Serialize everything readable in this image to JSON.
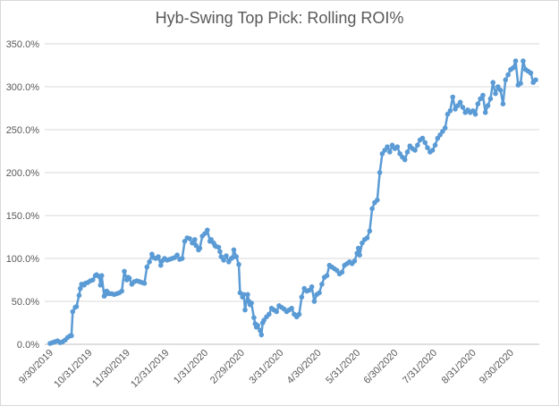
{
  "chart_data": {
    "type": "line",
    "title": "Hyb-Swing Top Pick: Rolling ROI%",
    "xlabel": "",
    "ylabel": "",
    "ylim": [
      0,
      350
    ],
    "y_ticks": [
      "0.0%",
      "50.0%",
      "100.0%",
      "150.0%",
      "200.0%",
      "250.0%",
      "300.0%",
      "350.0%"
    ],
    "x_ticks": [
      "9/30/2019",
      "10/31/2019",
      "11/30/2019",
      "12/31/2019",
      "1/31/2020",
      "2/29/2020",
      "3/31/2020",
      "4/30/2020",
      "5/31/2020",
      "6/30/2020",
      "7/31/2020",
      "8/31/2020",
      "9/30/2020"
    ],
    "x_range": [
      "2019-09-30",
      "2020-10-20"
    ],
    "grid": "horizontal",
    "legend": "none",
    "line_color": "#5b9bd5",
    "series": [
      {
        "x": [
          "2019-09-30",
          "2019-10-02",
          "2019-10-04",
          "2019-10-06",
          "2019-10-08",
          "2019-10-10",
          "2019-10-12",
          "2019-10-14",
          "2019-10-16",
          "2019-10-17",
          "2019-10-18",
          "2019-10-20",
          "2019-10-21",
          "2019-10-23",
          "2019-10-24",
          "2019-10-25",
          "2019-10-27",
          "2019-10-28",
          "2019-10-30",
          "2019-11-01",
          "2019-11-03",
          "2019-11-05",
          "2019-11-06",
          "2019-11-08",
          "2019-11-09",
          "2019-11-10",
          "2019-11-12",
          "2019-11-13",
          "2019-11-14",
          "2019-11-15",
          "2019-11-16",
          "2019-11-18",
          "2019-11-20",
          "2019-11-22",
          "2019-11-24",
          "2019-11-26",
          "2019-11-28",
          "2019-11-30",
          "2019-12-01",
          "2019-12-02",
          "2019-12-04",
          "2019-12-06",
          "2019-12-08",
          "2019-12-10",
          "2019-12-12",
          "2019-12-14",
          "2019-12-16",
          "2019-12-18",
          "2019-12-20",
          "2019-12-21",
          "2019-12-23",
          "2019-12-25",
          "2019-12-27",
          "2019-12-28",
          "2019-12-30",
          "2020-01-01",
          "2020-01-03",
          "2020-01-05",
          "2020-01-07",
          "2020-01-09",
          "2020-01-11",
          "2020-01-13",
          "2020-01-15",
          "2020-01-17",
          "2020-01-19",
          "2020-01-21",
          "2020-01-23",
          "2020-01-24",
          "2020-01-26",
          "2020-01-27",
          "2020-01-29",
          "2020-01-31",
          "2020-02-02",
          "2020-02-04",
          "2020-02-05",
          "2020-02-07",
          "2020-02-08",
          "2020-02-09",
          "2020-02-11",
          "2020-02-12",
          "2020-02-13",
          "2020-02-15",
          "2020-02-17",
          "2020-02-19",
          "2020-02-21",
          "2020-02-22",
          "2020-02-23",
          "2020-02-25",
          "2020-02-27",
          "2020-02-28",
          "2020-03-01",
          "2020-03-02",
          "2020-03-03",
          "2020-03-05",
          "2020-03-06",
          "2020-03-07",
          "2020-03-08",
          "2020-03-10",
          "2020-03-11",
          "2020-03-12",
          "2020-03-13",
          "2020-03-15",
          "2020-03-16",
          "2020-03-17",
          "2020-03-18",
          "2020-03-20",
          "2020-03-22",
          "2020-03-24",
          "2020-03-26",
          "2020-03-28",
          "2020-03-30",
          "2020-04-01",
          "2020-04-03",
          "2020-04-05",
          "2020-04-07",
          "2020-04-09",
          "2020-04-11",
          "2020-04-13",
          "2020-04-14",
          "2020-04-15",
          "2020-04-17",
          "2020-04-19",
          "2020-04-21",
          "2020-04-23",
          "2020-04-25",
          "2020-04-27",
          "2020-04-29",
          "2020-05-01",
          "2020-05-03",
          "2020-05-05",
          "2020-05-07",
          "2020-05-09",
          "2020-05-11",
          "2020-05-13",
          "2020-05-15",
          "2020-05-17",
          "2020-05-19",
          "2020-05-21",
          "2020-05-23",
          "2020-05-25",
          "2020-05-27",
          "2020-05-29",
          "2020-05-31",
          "2020-06-01",
          "2020-06-02",
          "2020-06-04",
          "2020-06-06",
          "2020-06-08",
          "2020-06-10",
          "2020-06-12",
          "2020-06-14",
          "2020-06-16",
          "2020-06-18",
          "2020-06-20",
          "2020-06-22",
          "2020-06-24",
          "2020-06-26",
          "2020-06-28",
          "2020-06-30",
          "2020-07-02",
          "2020-07-04",
          "2020-07-06",
          "2020-07-08",
          "2020-07-10",
          "2020-07-12",
          "2020-07-14",
          "2020-07-16",
          "2020-07-18",
          "2020-07-20",
          "2020-07-22",
          "2020-07-24",
          "2020-07-26",
          "2020-07-28",
          "2020-07-30",
          "2020-08-01",
          "2020-08-03",
          "2020-08-05",
          "2020-08-07",
          "2020-08-09",
          "2020-08-11",
          "2020-08-13",
          "2020-08-15",
          "2020-08-17",
          "2020-08-19",
          "2020-08-21",
          "2020-08-23",
          "2020-08-25",
          "2020-08-27",
          "2020-08-29",
          "2020-08-31",
          "2020-09-02",
          "2020-09-04",
          "2020-09-06",
          "2020-09-08",
          "2020-09-10",
          "2020-09-12",
          "2020-09-14",
          "2020-09-16",
          "2020-09-18",
          "2020-09-20",
          "2020-09-22",
          "2020-09-24",
          "2020-09-26",
          "2020-09-28",
          "2020-09-30",
          "2020-10-02",
          "2020-10-04",
          "2020-10-06",
          "2020-10-08",
          "2020-10-10",
          "2020-10-12",
          "2020-10-14",
          "2020-10-16",
          "2020-10-18",
          "2020-10-20"
        ],
        "y": [
          1,
          2,
          3,
          4,
          2,
          3,
          5,
          8,
          10,
          10,
          38,
          43,
          44,
          57,
          65,
          70,
          69,
          71,
          72,
          74,
          75,
          80,
          81,
          79,
          69,
          80,
          56,
          58,
          62,
          60,
          59,
          59,
          58,
          59,
          60,
          62,
          85,
          75,
          78,
          77,
          70,
          73,
          74,
          73,
          72,
          71,
          90,
          96,
          105,
          101,
          100,
          102,
          92,
          97,
          100,
          98,
          99,
          100,
          101,
          104,
          99,
          100,
          120,
          124,
          123,
          118,
          122,
          115,
          110,
          112,
          126,
          129,
          133,
          120,
          122,
          118,
          115,
          114,
          113,
          108,
          102,
          98,
          103,
          96,
          100,
          101,
          110,
          102,
          93,
          60,
          55,
          58,
          40,
          58,
          50,
          46,
          48,
          31,
          24,
          20,
          22,
          16,
          11,
          25,
          28,
          32,
          35,
          42,
          40,
          38,
          45,
          43,
          41,
          38,
          40,
          42,
          35,
          32,
          34,
          35,
          55,
          65,
          62,
          63,
          67,
          50,
          58,
          60,
          70,
          78,
          80,
          92,
          90,
          88,
          86,
          82,
          84,
          92,
          94,
          96,
          94,
          97,
          106,
          112,
          104,
          118,
          122,
          124,
          132,
          158,
          165,
          168,
          200,
          222,
          226,
          230,
          224,
          232,
          228,
          230,
          222,
          218,
          215,
          224,
          231,
          228,
          226,
          232,
          238,
          240,
          235,
          229,
          224,
          226,
          232,
          240,
          244,
          248,
          252,
          268,
          272,
          288,
          274,
          278,
          282,
          276,
          270,
          273,
          270,
          272,
          268,
          280,
          286,
          290,
          270,
          278,
          286,
          305,
          292,
          300,
          296,
          280,
          308,
          314,
          320,
          322,
          330,
          302,
          304,
          330,
          320,
          318,
          316,
          305,
          308
        ]
      }
    ]
  }
}
